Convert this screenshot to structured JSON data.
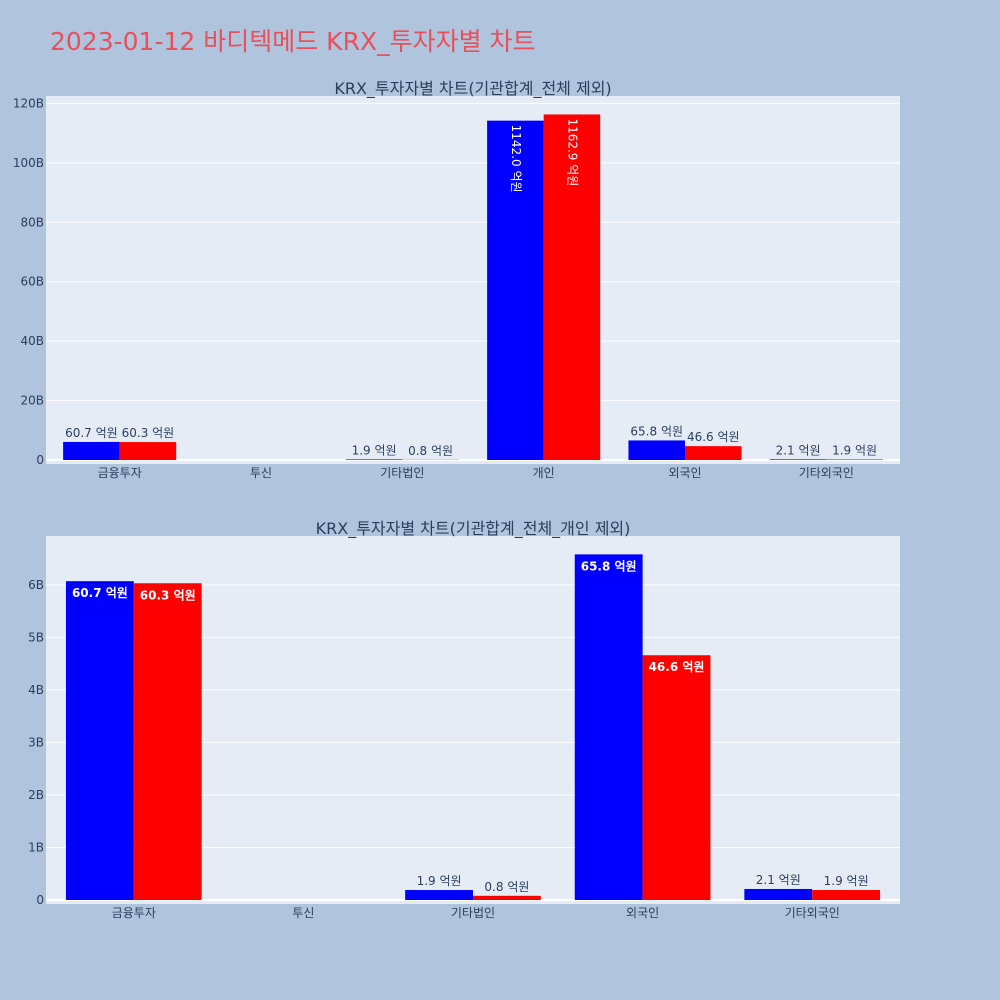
{
  "page_title": "2023-01-12 바디텍메드 KRX_투자자별 차트",
  "colors": {
    "buy": "#0000ff",
    "sell": "#ff0000",
    "title": "#e8505b",
    "plot_bg": "#e5ecf6",
    "paper_bg": "#b0c4de",
    "text": "#2a3f5f"
  },
  "chart_data": [
    {
      "type": "bar",
      "title": "KRX_투자자별 차트(기관합계_전체 제외)",
      "categories": [
        "금융투자",
        "투신",
        "기타법인",
        "개인",
        "외국인",
        "기타외국인"
      ],
      "series": [
        {
          "name": "buy",
          "color": "#0000ff",
          "values": [
            6.07,
            0,
            0.19,
            114.2,
            6.58,
            0.21
          ]
        },
        {
          "name": "sell",
          "color": "#ff0000",
          "values": [
            6.03,
            0,
            0.08,
            116.29,
            4.66,
            0.19
          ]
        }
      ],
      "labels": [
        [
          "60.7 억원",
          "",
          "1.9 억원",
          "1142.0 억원",
          "65.8 억원",
          "2.1 억원"
        ],
        [
          "60.3 억원",
          "",
          "0.8 억원",
          "1162.9 억원",
          "46.6 억원",
          "1.9 억원"
        ]
      ],
      "yticks": [
        0,
        20,
        40,
        60,
        80,
        100,
        120
      ],
      "ytick_labels": [
        "0",
        "20B",
        "40B",
        "60B",
        "80B",
        "100B",
        "120B"
      ],
      "ylim": [
        0,
        122.5
      ],
      "label_mode": "auto",
      "xlabel": "",
      "ylabel": ""
    },
    {
      "type": "bar",
      "title": "KRX_투자자별 차트(기관합계_전체_개인 제외)",
      "categories": [
        "금융투자",
        "투신",
        "기타법인",
        "외국인",
        "기타외국인"
      ],
      "series": [
        {
          "name": "buy",
          "color": "#0000ff",
          "values": [
            6.07,
            0,
            0.19,
            6.58,
            0.21
          ]
        },
        {
          "name": "sell",
          "color": "#ff0000",
          "values": [
            6.03,
            0,
            0.08,
            4.66,
            0.19
          ]
        }
      ],
      "labels": [
        [
          "60.7 억원",
          "",
          "1.9 억원",
          "65.8 억원",
          "2.1 억원"
        ],
        [
          "60.3 억원",
          "",
          "0.8 억원",
          "46.6 억원",
          "1.9 억원"
        ]
      ],
      "yticks": [
        0,
        1,
        2,
        3,
        4,
        5,
        6
      ],
      "ytick_labels": [
        "0",
        "1B",
        "2B",
        "3B",
        "4B",
        "5B",
        "6B"
      ],
      "ylim": [
        0,
        6.93
      ],
      "label_mode": "inside_horizontal",
      "xlabel": "",
      "ylabel": ""
    }
  ]
}
